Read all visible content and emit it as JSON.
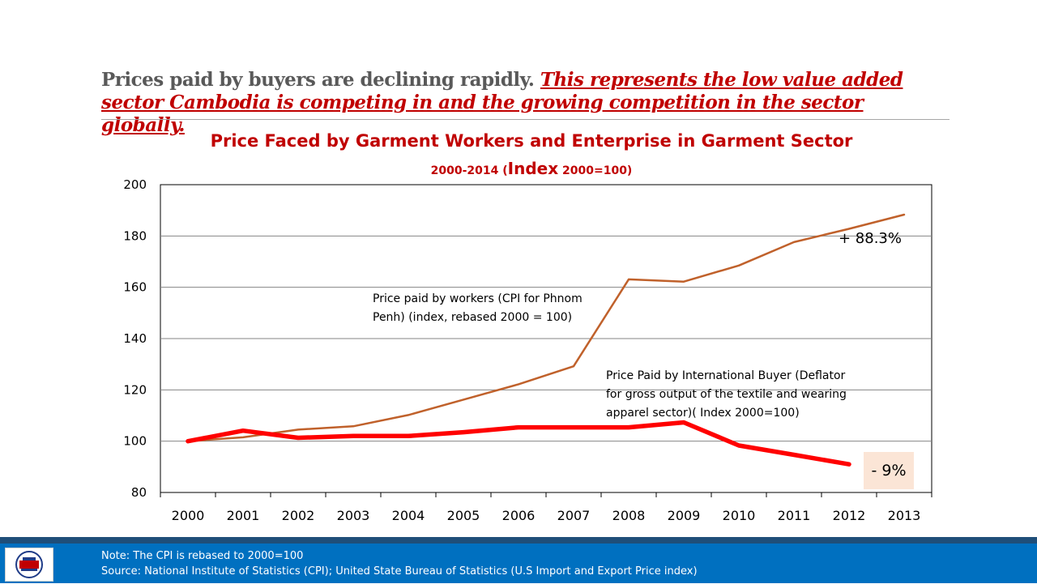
{
  "headline": {
    "plain": "Prices paid by buyers are declining rapidly. ",
    "emphasis": "This represents the low value added sector Cambodia is competing in and the growing competition in the sector globally."
  },
  "chart_data": {
    "type": "line",
    "title": "Price Faced by Garment Workers and Enterprise in Garment Sector",
    "subtitle_prefix": "2000-2014 (",
    "subtitle_big": "Index",
    "subtitle_suffix": " 2000=100)",
    "categories": [
      "2000",
      "2001",
      "2002",
      "2003",
      "2004",
      "2005",
      "2006",
      "2007",
      "2008",
      "2009",
      "2010",
      "2011",
      "2012",
      "2013"
    ],
    "ylim": [
      80,
      200
    ],
    "yticks": [
      "200",
      "180",
      "160",
      "140",
      "120",
      "100",
      "80"
    ],
    "grid": true,
    "series": [
      {
        "name": "Price paid by workers (CPI for Phnom Penh) (index, rebased 2000 = 100)",
        "color": "#c0612b",
        "values": [
          100,
          101.5,
          104.5,
          105.8,
          110.2,
          116.2,
          122.2,
          129.2,
          163.1,
          162.2,
          168.5,
          177.6,
          182.8,
          188.3
        ]
      },
      {
        "name": "Price Paid by International Buyer (Deflator for gross output of the textile and wearing apparel sector)( Index 2000=100)",
        "color": "#ff0000",
        "values": [
          100,
          104.1,
          101.3,
          102.0,
          102.0,
          103.5,
          105.4,
          105.4,
          105.4,
          107.3,
          98.3,
          94.7,
          91.0,
          null
        ]
      }
    ],
    "annotations": {
      "workers_label_line1": "Price paid by workers (CPI for Phnom",
      "workers_label_line2": "Penh) (index, rebased 2000 = 100)",
      "buyer_label_line1": "Price Paid by International Buyer (Deflator",
      "buyer_label_line2": "for gross output of the textile and wearing",
      "buyer_label_line3": "apparel sector)( Index 2000=100)",
      "workers_change": "+ 88.3%",
      "buyer_change": "- 9%"
    }
  },
  "footer": {
    "note": "Note: The CPI is rebased to 2000=100",
    "source": "Source: National Institute of Statistics (CPI); United State Bureau of Statistics (U.S Import and Export Price index)"
  }
}
